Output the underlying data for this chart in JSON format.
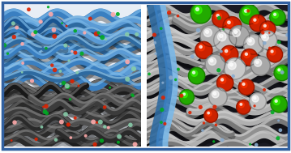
{
  "figsize": [
    3.59,
    1.89
  ],
  "dpi": 100,
  "border_color": "#3060a0",
  "border_linewidth": 2.0,
  "left_bg": "#e8eef5",
  "right_bg": "#1a1a22",
  "blue_colors": [
    "#3a7fc1",
    "#5b9bd5",
    "#7ab8e8",
    "#2e6aa0",
    "#90c4e8",
    "#1a5490"
  ],
  "gray_colors": [
    "#2a2a2a",
    "#3c3c3c",
    "#505050",
    "#686868",
    "#808080",
    "#181818"
  ],
  "silver_colors": [
    "#909090",
    "#b0b0b0",
    "#c8c8c8",
    "#787878",
    "#a0a0a0",
    "#d0d0d0"
  ],
  "red_sphere": "#cc2200",
  "green_sphere": "#22aa00",
  "small_red": "#dd2200",
  "small_green": "#00aa22"
}
